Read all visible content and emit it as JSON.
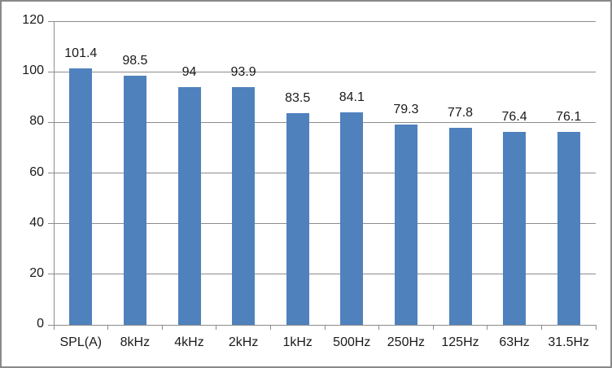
{
  "chart_data": {
    "type": "bar",
    "title": "",
    "xlabel": "",
    "ylabel": "",
    "categories": [
      "SPL(A)",
      "8kHz",
      "4kHz",
      "2kHz",
      "1kHz",
      "500Hz",
      "250Hz",
      "125Hz",
      "63Hz",
      "31.5Hz"
    ],
    "values": [
      101.4,
      98.5,
      94,
      93.9,
      83.5,
      84.1,
      79.3,
      77.8,
      76.4,
      76.1
    ],
    "data_labels": [
      "101.4",
      "98.5",
      "94",
      "93.9",
      "83.5",
      "84.1",
      "79.3",
      "77.8",
      "76.4",
      "76.1"
    ],
    "ylim": [
      0,
      120
    ],
    "yticks": [
      0,
      20,
      40,
      60,
      80,
      100,
      120
    ],
    "grid": true,
    "legend": false,
    "colors": {
      "bar": "#4F81BD",
      "gridline": "#8c8c8c",
      "axis": "#8c8c8c",
      "text": "#1a1a1a",
      "border": "#8a8a8a",
      "background": "#ffffff"
    }
  }
}
